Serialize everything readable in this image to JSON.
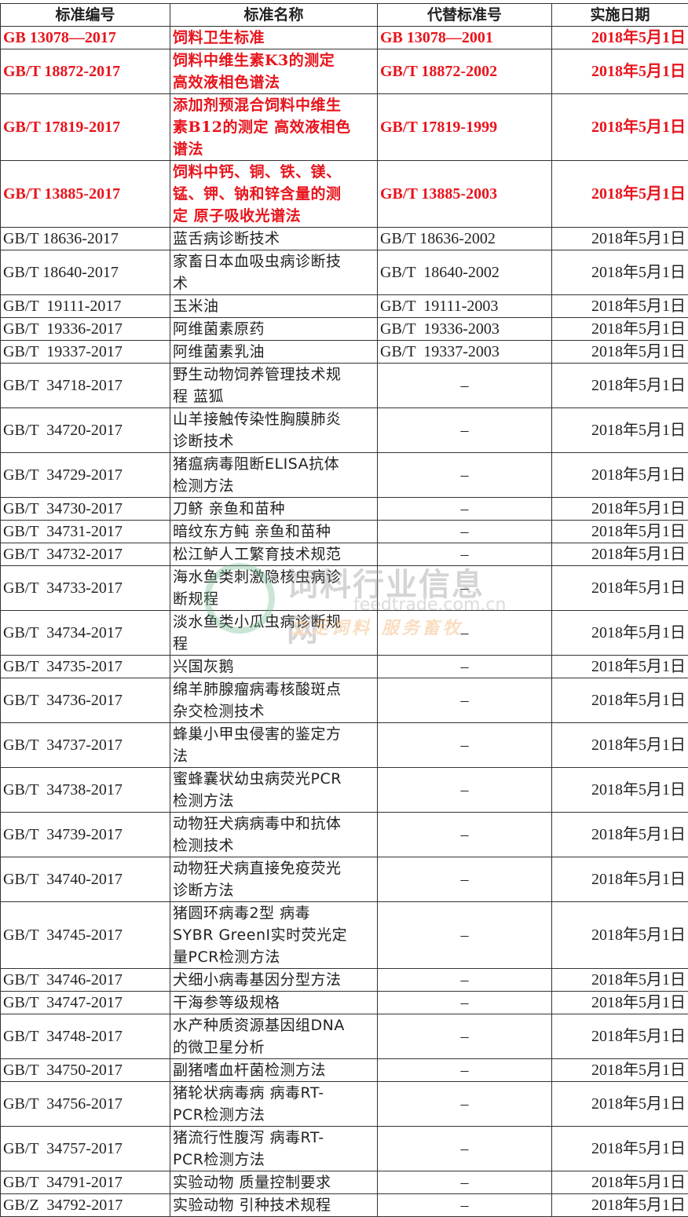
{
  "headers": [
    "标准编号",
    "标准名称",
    "代替标准号",
    "实施日期"
  ],
  "highlight_color": "#e8141c",
  "rows": [
    {
      "id": "GB 13078—2017",
      "name": "饲料卫生标准",
      "replaces": "GB 13078—2001",
      "date": "2018年5月1日",
      "highlight": true
    },
    {
      "id": "GB/T 18872-2017",
      "name": "饲料中维生素K3的测定\n高效液相色谱法",
      "replaces": "GB/T 18872-2002",
      "date": "2018年5月1日",
      "highlight": true
    },
    {
      "id": "GB/T 17819-2017",
      "name": "添加剂预混合饲料中维生\n素B12的测定 高效液相色\n谱法",
      "replaces": "GB/T 17819-1999",
      "date": "2018年5月1日",
      "highlight": true
    },
    {
      "id": "GB/T 13885-2017",
      "name": "饲料中钙、铜、铁、镁、\n锰、钾、钠和锌含量的测\n定 原子吸收光谱法",
      "replaces": "GB/T 13885-2003",
      "date": "2018年5月1日",
      "highlight": true
    },
    {
      "id": "GB/T 18636-2017",
      "name": "蓝舌病诊断技术",
      "replaces": "GB/T 18636-2002",
      "date": "2018年5月1日"
    },
    {
      "id": "GB/T 18640-2017",
      "name": "家畜日本血吸虫病诊断技\n术",
      "replaces": "GB/T  18640-2002",
      "date": "2018年5月1日"
    },
    {
      "id": "GB/T  19111-2017",
      "name": "玉米油",
      "replaces": "GB/T  19111-2003",
      "date": "2018年5月1日"
    },
    {
      "id": "GB/T  19336-2017",
      "name": "阿维菌素原药",
      "replaces": "GB/T  19336-2003",
      "date": "2018年5月1日"
    },
    {
      "id": "GB/T  19337-2017",
      "name": "阿维菌素乳油",
      "replaces": "GB/T  19337-2003",
      "date": "2018年5月1日"
    },
    {
      "id": "GB/T  34718-2017",
      "name": "野生动物饲养管理技术规\n程  蓝狐",
      "replaces": "–",
      "date": "2018年5月1日"
    },
    {
      "id": "GB/T  34720-2017",
      "name": "山羊接触传染性胸膜肺炎\n诊断技术",
      "replaces": "–",
      "date": "2018年5月1日"
    },
    {
      "id": "GB/T  34729-2017",
      "name": "猪瘟病毒阻断ELISA抗体\n检测方法",
      "replaces": "–",
      "date": "2018年5月1日"
    },
    {
      "id": "GB/T  34730-2017",
      "name": "刀鲚  亲鱼和苗种",
      "replaces": "–",
      "date": "2018年5月1日"
    },
    {
      "id": "GB/T  34731-2017",
      "name": "暗纹东方鲀  亲鱼和苗种",
      "replaces": "–",
      "date": "2018年5月1日"
    },
    {
      "id": "GB/T  34732-2017",
      "name": "松江鲈人工繁育技术规范",
      "replaces": "–",
      "date": "2018年5月1日"
    },
    {
      "id": "GB/T  34733-2017",
      "name": "海水鱼类刺激隐核虫病诊\n断规程",
      "replaces": "–",
      "date": "2018年5月1日"
    },
    {
      "id": "GB/T  34734-2017",
      "name": "淡水鱼类小瓜虫病诊断规\n程",
      "replaces": "–",
      "date": "2018年5月1日"
    },
    {
      "id": "GB/T  34735-2017",
      "name": "兴国灰鹅",
      "replaces": "–",
      "date": "2018年5月1日"
    },
    {
      "id": "GB/T  34736-2017",
      "name": "绵羊肺腺瘤病毒核酸斑点\n杂交检测技术",
      "replaces": "–",
      "date": "2018年5月1日"
    },
    {
      "id": "GB/T  34737-2017",
      "name": "蜂巢小甲虫侵害的鉴定方\n法",
      "replaces": "–",
      "date": "2018年5月1日"
    },
    {
      "id": "GB/T  34738-2017",
      "name": "蜜蜂囊状幼虫病荧光PCR\n检测方法",
      "replaces": "–",
      "date": "2018年5月1日"
    },
    {
      "id": "GB/T  34739-2017",
      "name": "动物狂犬病病毒中和抗体\n检测技术",
      "replaces": "–",
      "date": "2018年5月1日"
    },
    {
      "id": "GB/T  34740-2017",
      "name": "动物狂犬病直接免疫荧光\n诊断方法",
      "replaces": "–",
      "date": "2018年5月1日"
    },
    {
      "id": "GB/T  34745-2017",
      "name": "猪圆环病毒2型  病毒\nSYBR GreenI实时荧光定\n量PCR检测方法",
      "replaces": "–",
      "date": "2018年5月1日"
    },
    {
      "id": "GB/T  34746-2017",
      "name": "犬细小病毒基因分型方法",
      "replaces": "–",
      "date": "2018年5月1日"
    },
    {
      "id": "GB/T  34747-2017",
      "name": "干海参等级规格",
      "replaces": "–",
      "date": "2018年5月1日"
    },
    {
      "id": "GB/T  34748-2017",
      "name": "水产种质资源基因组DNA\n的微卫星分析",
      "replaces": "–",
      "date": "2018年5月1日"
    },
    {
      "id": "GB/T  34750-2017",
      "name": "副猪嗜血杆菌检测方法",
      "replaces": "–",
      "date": "2018年5月1日"
    },
    {
      "id": "GB/T  34756-2017",
      "name": "猪轮状病毒病  病毒RT-\nPCR检测方法",
      "replaces": "–",
      "date": "2018年5月1日"
    },
    {
      "id": "GB/T  34757-2017",
      "name": "猪流行性腹泻  病毒RT-\nPCR检测方法",
      "replaces": "–",
      "date": "2018年5月1日"
    },
    {
      "id": "GB/T  34791-2017",
      "name": "实验动物  质量控制要求",
      "replaces": "–",
      "date": "2018年5月1日"
    },
    {
      "id": "GB/Z  34792-2017",
      "name": "实验动物  引种技术规程",
      "replaces": "–",
      "date": "2018年5月1日"
    }
  ],
  "watermark": {
    "title": "饲料行业信息网",
    "url": "feedtrade.com.cn",
    "slogan": "立足饲料  服务畜牧"
  }
}
